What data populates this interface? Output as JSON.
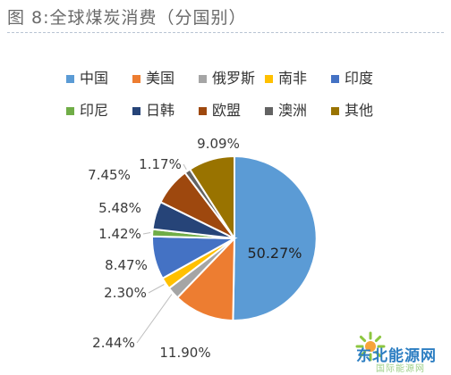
{
  "chart_data": {
    "type": "pie",
    "title": "图 8:全球煤炭消费（分国别）",
    "categories": [
      "中国",
      "美国",
      "俄罗斯",
      "南非",
      "印度",
      "印尼",
      "日韩",
      "欧盟",
      "澳洲",
      "其他"
    ],
    "values": [
      50.27,
      11.9,
      2.44,
      2.3,
      8.47,
      1.42,
      5.48,
      7.45,
      1.17,
      9.09
    ],
    "value_labels": [
      "50.27%",
      "11.90%",
      "2.44%",
      "2.30%",
      "8.47%",
      "1.42%",
      "5.48%",
      "7.45%",
      "1.17%",
      "9.09%"
    ],
    "colors": [
      "#5b9bd5",
      "#ed7d31",
      "#a5a5a5",
      "#ffc000",
      "#4472c4",
      "#70ad47",
      "#264478",
      "#9e480e",
      "#636363",
      "#997300"
    ],
    "legend_position": "top",
    "start_angle": "12 o'clock",
    "direction": "clockwise"
  },
  "watermark": {
    "text": "东北能源网",
    "subtext": "国际能源网"
  }
}
